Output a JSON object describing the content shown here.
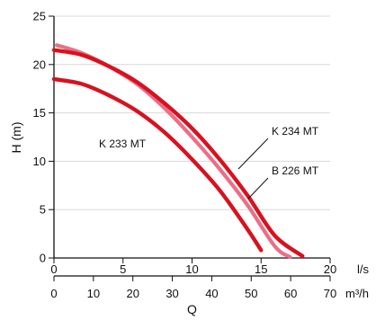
{
  "chart_data": {
    "type": "line",
    "title": "",
    "xlabel": "Q",
    "ylabel": "H (m)",
    "x_unit_primary": "l/s",
    "x_unit_secondary": "m³/h",
    "xlim": [
      0,
      20
    ],
    "x2lim": [
      0,
      70
    ],
    "ylim": [
      0,
      25
    ],
    "x_ticks": [
      0,
      5,
      10,
      15,
      20
    ],
    "x2_ticks": [
      0,
      10,
      20,
      30,
      40,
      50,
      60,
      70
    ],
    "y_ticks": [
      0,
      5,
      10,
      15,
      20,
      25
    ],
    "grid": true,
    "colors": {
      "series_1": "#d7121f",
      "series_2": "#d7121f",
      "series_3": "#ea6f86",
      "axis": "#111111",
      "grid": "#d8d8d8"
    },
    "series": [
      {
        "name": "K 233 MT",
        "values": [
          {
            "x": 0,
            "y": 18.5
          },
          {
            "x": 2,
            "y": 18.0
          },
          {
            "x": 4,
            "y": 16.8
          },
          {
            "x": 6,
            "y": 15.2
          },
          {
            "x": 8,
            "y": 13.0
          },
          {
            "x": 10,
            "y": 10.2
          },
          {
            "x": 12,
            "y": 7.0
          },
          {
            "x": 14,
            "y": 3.0
          },
          {
            "x": 15,
            "y": 0.8
          }
        ]
      },
      {
        "name": "K 234 MT",
        "values": [
          {
            "x": 0,
            "y": 21.5
          },
          {
            "x": 2,
            "y": 21.0
          },
          {
            "x": 4,
            "y": 19.8
          },
          {
            "x": 6,
            "y": 18.2
          },
          {
            "x": 8,
            "y": 16.0
          },
          {
            "x": 10,
            "y": 13.4
          },
          {
            "x": 12,
            "y": 10.2
          },
          {
            "x": 14,
            "y": 6.5
          },
          {
            "x": 16,
            "y": 2.3
          },
          {
            "x": 18,
            "y": 0.2
          }
        ]
      },
      {
        "name": "B 226 MT",
        "values": [
          {
            "x": 0.2,
            "y": 22.0
          },
          {
            "x": 2,
            "y": 21.2
          },
          {
            "x": 4,
            "y": 19.8
          },
          {
            "x": 6,
            "y": 18.0
          },
          {
            "x": 8,
            "y": 15.5
          },
          {
            "x": 10,
            "y": 12.5
          },
          {
            "x": 12,
            "y": 9.2
          },
          {
            "x": 14,
            "y": 5.5
          },
          {
            "x": 16,
            "y": 1.2
          },
          {
            "x": 17.1,
            "y": 0.1
          }
        ]
      }
    ]
  }
}
